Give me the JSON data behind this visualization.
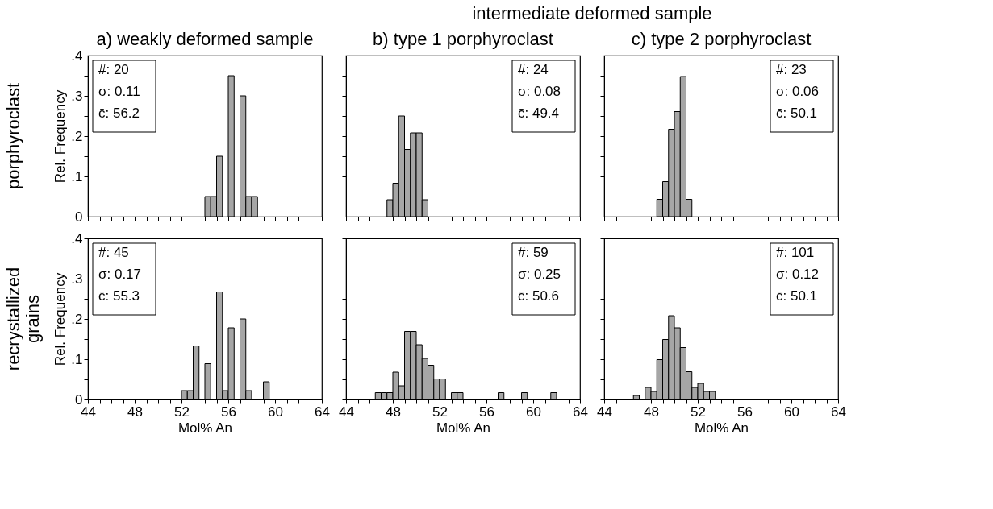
{
  "chart_data": [
    {
      "type": "histogram",
      "title": "a)  weakly deformed sample",
      "ylabel": "Rel. Frequency",
      "color": "#a6a6a6",
      "bins": [
        54,
        54.5,
        55,
        55.5,
        56,
        56.5,
        57,
        57.5,
        58,
        58.5
      ],
      "values": [
        0.05,
        0.05,
        0.15,
        0,
        0.35,
        0,
        0.3,
        0.05,
        0.05
      ],
      "xlim": [
        44,
        64
      ],
      "ylim": [
        0,
        0.4
      ],
      "xticks": [
        44,
        {
          "value": 45,
          "label": null
        },
        {
          "value": 46,
          "label": null
        },
        {
          "value": 47,
          "label": null
        },
        48,
        {
          "value": 49,
          "label": null
        },
        {
          "value": 50,
          "label": null
        },
        {
          "value": 51,
          "label": null
        },
        52,
        {
          "value": 53,
          "label": null
        },
        {
          "value": 54,
          "label": null
        },
        {
          "value": 55,
          "label": null
        },
        56,
        {
          "value": 57,
          "label": null
        },
        {
          "value": 58,
          "label": null
        },
        {
          "value": 59,
          "label": null
        },
        60,
        {
          "value": 61,
          "label": null
        },
        {
          "value": 62,
          "label": null
        },
        {
          "value": 63,
          "label": null
        },
        64
      ],
      "yticks": [
        0,
        {
          "value": 0.05,
          "label": null
        },
        {
          "value": 0.1,
          "label": ".1"
        },
        {
          "value": 0.15,
          "label": null
        },
        {
          "value": 0.2,
          "label": ".2"
        },
        {
          "value": 0.25,
          "label": null
        },
        {
          "value": 0.3,
          "label": ".3"
        },
        {
          "value": 0.35,
          "label": null
        },
        {
          "value": 0.4,
          "label": ".4"
        }
      ],
      "tick_labels": "y",
      "grid": false,
      "annotations": [
        "#:  20",
        "σ: 0.11",
        "c̄: 56.2",
        "porphyroclast"
      ]
    },
    {
      "type": "histogram",
      "title": "b) type 1 porphyroclast",
      "color": "#a6a6a6",
      "bins": [
        47.5,
        48,
        48.5,
        49,
        49.5,
        50,
        50.5,
        51
      ],
      "values": [
        0.042,
        0.083,
        0.25,
        0.167,
        0.208,
        0.208,
        0.042
      ],
      "xlim": [
        44,
        64
      ],
      "ylim": [
        0,
        0.4
      ],
      "xticks": [
        44,
        {
          "value": 45,
          "label": null
        },
        {
          "value": 46,
          "label": null
        },
        {
          "value": 47,
          "label": null
        },
        48,
        {
          "value": 49,
          "label": null
        },
        {
          "value": 50,
          "label": null
        },
        {
          "value": 51,
          "label": null
        },
        52,
        {
          "value": 53,
          "label": null
        },
        {
          "value": 54,
          "label": null
        },
        {
          "value": 55,
          "label": null
        },
        56,
        {
          "value": 57,
          "label": null
        },
        {
          "value": 58,
          "label": null
        },
        {
          "value": 59,
          "label": null
        },
        60,
        {
          "value": 61,
          "label": null
        },
        {
          "value": 62,
          "label": null
        },
        {
          "value": 63,
          "label": null
        },
        64
      ],
      "yticks": [
        0,
        {
          "value": 0.05,
          "label": null
        },
        {
          "value": 0.1,
          "label": null
        },
        {
          "value": 0.15,
          "label": null
        },
        {
          "value": 0.2,
          "label": null
        },
        {
          "value": 0.25,
          "label": null
        },
        {
          "value": 0.3,
          "label": null
        },
        {
          "value": 0.35,
          "label": null
        },
        {
          "value": 0.4,
          "label": null
        }
      ],
      "tick_labels": false,
      "grid": false,
      "annotations": [
        "#:  24",
        "σ: 0.08",
        "c̄: 49.4",
        "intermediate deformed sample"
      ]
    },
    {
      "type": "histogram",
      "title": "c) type 2 porphyroclast",
      "color": "#a6a6a6",
      "bins": [
        48.5,
        49,
        49.5,
        50,
        50.5,
        51,
        51.5
      ],
      "values": [
        0.043,
        0.087,
        0.217,
        0.261,
        0.348,
        0.043
      ],
      "xlim": [
        44,
        64
      ],
      "ylim": [
        0,
        0.4
      ],
      "xticks": [
        44,
        {
          "value": 45,
          "label": null
        },
        {
          "value": 46,
          "label": null
        },
        {
          "value": 47,
          "label": null
        },
        48,
        {
          "value": 49,
          "label": null
        },
        {
          "value": 50,
          "label": null
        },
        {
          "value": 51,
          "label": null
        },
        52,
        {
          "value": 53,
          "label": null
        },
        {
          "value": 54,
          "label": null
        },
        {
          "value": 55,
          "label": null
        },
        56,
        {
          "value": 57,
          "label": null
        },
        {
          "value": 58,
          "label": null
        },
        {
          "value": 59,
          "label": null
        },
        60,
        {
          "value": 61,
          "label": null
        },
        {
          "value": 62,
          "label": null
        },
        {
          "value": 63,
          "label": null
        },
        64
      ],
      "yticks": [
        0,
        {
          "value": 0.05,
          "label": null
        },
        {
          "value": 0.1,
          "label": null
        },
        {
          "value": 0.15,
          "label": null
        },
        {
          "value": 0.2,
          "label": null
        },
        {
          "value": 0.25,
          "label": null
        },
        {
          "value": 0.3,
          "label": null
        },
        {
          "value": 0.35,
          "label": null
        },
        {
          "value": 0.4,
          "label": null
        }
      ],
      "tick_labels": false,
      "grid": false,
      "annotations": [
        "#:  23",
        "σ: 0.06",
        "c̄: 50.1"
      ]
    },
    {
      "type": "histogram",
      "xlabel": "Mol% An",
      "ylabel": "Rel. Frequency",
      "color": "#a6a6a6",
      "bins": [
        52,
        52.5,
        53,
        53.5,
        54,
        54.5,
        55,
        55.5,
        56,
        56.5,
        57,
        57.5,
        58,
        58.5,
        59,
        59.5
      ],
      "values": [
        0.022,
        0.022,
        0.133,
        0,
        0.089,
        0,
        0.267,
        0.022,
        0.178,
        0,
        0.2,
        0.022,
        0,
        0,
        0.044
      ],
      "xlim": [
        44,
        64
      ],
      "ylim": [
        0,
        0.4
      ],
      "xticks": [
        44,
        {
          "value": 45,
          "label": null
        },
        {
          "value": 46,
          "label": null
        },
        {
          "value": 47,
          "label": null
        },
        48,
        {
          "value": 49,
          "label": null
        },
        {
          "value": 50,
          "label": null
        },
        {
          "value": 51,
          "label": null
        },
        52,
        {
          "value": 53,
          "label": null
        },
        {
          "value": 54,
          "label": null
        },
        {
          "value": 55,
          "label": null
        },
        56,
        {
          "value": 57,
          "label": null
        },
        {
          "value": 58,
          "label": null
        },
        {
          "value": 59,
          "label": null
        },
        60,
        {
          "value": 61,
          "label": null
        },
        {
          "value": 62,
          "label": null
        },
        {
          "value": 63,
          "label": null
        },
        64
      ],
      "yticks": [
        0,
        {
          "value": 0.05,
          "label": null
        },
        {
          "value": 0.1,
          "label": ".1"
        },
        {
          "value": 0.15,
          "label": null
        },
        {
          "value": 0.2,
          "label": ".2"
        },
        {
          "value": 0.25,
          "label": null
        },
        {
          "value": 0.3,
          "label": ".3"
        },
        {
          "value": 0.35,
          "label": null
        },
        {
          "value": 0.4,
          "label": ".4"
        }
      ],
      "grid": false,
      "annotations": [
        "#:  45",
        "σ: 0.17",
        "c̄: 55.3",
        "recrystallized grains"
      ]
    },
    {
      "type": "histogram",
      "xlabel": "Mol% An",
      "color": "#a6a6a6",
      "bins": [
        46.5,
        47,
        47.5,
        48,
        48.5,
        49,
        49.5,
        50,
        50.5,
        51,
        51.5,
        52,
        52.5,
        53,
        53.5,
        54,
        54.5,
        55,
        55.5,
        56,
        56.5,
        57,
        57.5,
        58,
        58.5,
        59,
        59.5,
        60,
        60.5,
        61,
        61.5,
        62
      ],
      "values": [
        0.017,
        0.017,
        0.017,
        0.068,
        0.034,
        0.169,
        0.169,
        0.136,
        0.102,
        0.085,
        0.051,
        0.051,
        0,
        0.017,
        0.017,
        0,
        0,
        0,
        0,
        0,
        0,
        0.017,
        0,
        0,
        0,
        0.017,
        0,
        0,
        0,
        0,
        0.017
      ],
      "xlim": [
        44,
        64
      ],
      "ylim": [
        0,
        0.4
      ],
      "xticks": [
        44,
        {
          "value": 45,
          "label": null
        },
        {
          "value": 46,
          "label": null
        },
        {
          "value": 47,
          "label": null
        },
        48,
        {
          "value": 49,
          "label": null
        },
        {
          "value": 50,
          "label": null
        },
        {
          "value": 51,
          "label": null
        },
        52,
        {
          "value": 53,
          "label": null
        },
        {
          "value": 54,
          "label": null
        },
        {
          "value": 55,
          "label": null
        },
        56,
        {
          "value": 57,
          "label": null
        },
        {
          "value": 58,
          "label": null
        },
        {
          "value": 59,
          "label": null
        },
        60,
        {
          "value": 61,
          "label": null
        },
        {
          "value": 62,
          "label": null
        },
        {
          "value": 63,
          "label": null
        },
        64
      ],
      "yticks": [
        0,
        {
          "value": 0.05,
          "label": null
        },
        {
          "value": 0.1,
          "label": null
        },
        {
          "value": 0.15,
          "label": null
        },
        {
          "value": 0.2,
          "label": null
        },
        {
          "value": 0.25,
          "label": null
        },
        {
          "value": 0.3,
          "label": null
        },
        {
          "value": 0.35,
          "label": null
        },
        {
          "value": 0.4,
          "label": null
        }
      ],
      "tick_labels": "x",
      "grid": false,
      "annotations": [
        "#:  59",
        "σ: 0.25",
        "c̄: 50.6"
      ]
    },
    {
      "type": "histogram",
      "xlabel": "Mol% An",
      "color": "#a6a6a6",
      "bins": [
        46.5,
        47,
        47.5,
        48,
        48.5,
        49,
        49.5,
        50,
        50.5,
        51,
        51.5,
        52,
        52.5,
        53,
        53.5
      ],
      "values": [
        0.01,
        0,
        0.03,
        0.02,
        0.099,
        0.149,
        0.208,
        0.178,
        0.129,
        0.069,
        0.03,
        0.04,
        0.02,
        0.02
      ],
      "xlim": [
        44,
        64
      ],
      "ylim": [
        0,
        0.4
      ],
      "xticks": [
        44,
        {
          "value": 45,
          "label": null
        },
        {
          "value": 46,
          "label": null
        },
        {
          "value": 47,
          "label": null
        },
        48,
        {
          "value": 49,
          "label": null
        },
        {
          "value": 50,
          "label": null
        },
        {
          "value": 51,
          "label": null
        },
        52,
        {
          "value": 53,
          "label": null
        },
        {
          "value": 54,
          "label": null
        },
        {
          "value": 55,
          "label": null
        },
        56,
        {
          "value": 57,
          "label": null
        },
        {
          "value": 58,
          "label": null
        },
        {
          "value": 59,
          "label": null
        },
        60,
        {
          "value": 61,
          "label": null
        },
        {
          "value": 62,
          "label": null
        },
        {
          "value": 63,
          "label": null
        },
        64
      ],
      "yticks": [
        0,
        {
          "value": 0.05,
          "label": null
        },
        {
          "value": 0.1,
          "label": null
        },
        {
          "value": 0.15,
          "label": null
        },
        {
          "value": 0.2,
          "label": null
        },
        {
          "value": 0.25,
          "label": null
        },
        {
          "value": 0.3,
          "label": null
        },
        {
          "value": 0.35,
          "label": null
        },
        {
          "value": 0.4,
          "label": null
        }
      ],
      "tick_labels": "x",
      "grid": false,
      "annotations": [
        "#: 101",
        "σ: 0.12",
        "c̄: 50.1"
      ]
    }
  ]
}
